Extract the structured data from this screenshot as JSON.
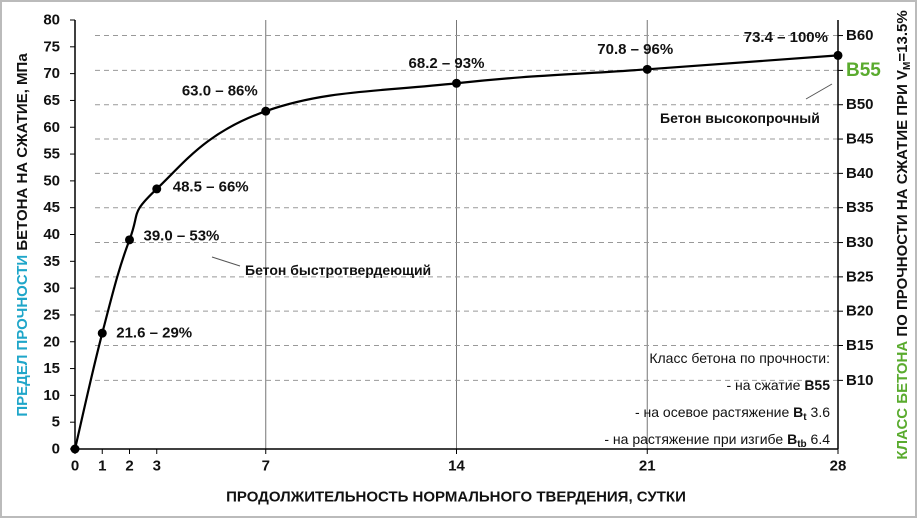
{
  "chart_data": {
    "type": "line",
    "y_title_parts": [
      "ПРЕДЕЛ ПРОЧНОСТИ",
      " БЕТОНА НА СЖАТИЕ, МПа"
    ],
    "y2_title_parts": [
      "КЛАСС БЕТОНА",
      " ПО ПРОЧНОСТИ НА СЖАТИЕ ПРИ V",
      "M",
      "=13.5%"
    ],
    "x_title": "ПРОДОЛЖИТЕЛЬНОСТЬ НОРМАЛЬНОГО ТВЕРДЕНИЯ, СУТКИ",
    "x": [
      0,
      1,
      2,
      3,
      7,
      14,
      21,
      28
    ],
    "series": [
      {
        "name": "Прочность",
        "color": "#000000",
        "values": [
          0,
          21.6,
          39.0,
          48.5,
          63.0,
          68.2,
          70.8,
          73.4
        ],
        "value_labels": [
          null,
          "21.6 – 29%",
          "39.0 – 53%",
          "48.5 – 66%",
          "63.0 – 86%",
          "68.2 – 93%",
          "70.8 – 96%",
          "73.4 – 100%"
        ]
      }
    ],
    "xlim": [
      0,
      28
    ],
    "xticks": [
      0,
      1,
      2,
      3,
      7,
      14,
      21,
      28
    ],
    "xgrid": [
      false,
      false,
      false,
      false,
      true,
      true,
      true,
      false
    ],
    "ylim": [
      0,
      80
    ],
    "yticks": [
      0,
      5,
      10,
      15,
      20,
      25,
      30,
      35,
      40,
      45,
      50,
      55,
      60,
      65,
      70,
      75,
      80
    ],
    "y2lim": [
      0,
      80
    ],
    "y2ticks": [
      {
        "value": 12.8,
        "label": "B10"
      },
      {
        "value": 19.3,
        "label": "B15"
      },
      {
        "value": 25.7,
        "label": "B20"
      },
      {
        "value": 32.1,
        "label": "B25"
      },
      {
        "value": 38.5,
        "label": "B30"
      },
      {
        "value": 45.0,
        "label": "B35"
      },
      {
        "value": 51.4,
        "label": "B40"
      },
      {
        "value": 57.8,
        "label": "B45"
      },
      {
        "value": 64.2,
        "label": "B50"
      },
      {
        "value": 70.6,
        "label": "B55"
      },
      {
        "value": 77.1,
        "label": "B60"
      }
    ],
    "y2_highlight": "B55",
    "y2_grid": "dashed",
    "annotations": [
      "Бетон быстротвердеющий",
      "Бетон высокопрочный"
    ],
    "info": {
      "heading": "Класс бетона по прочности:",
      "lines": [
        {
          "text": "- на сжатие ",
          "cls": "B55",
          "sub": "",
          "value": ""
        },
        {
          "text": "- на осевое растяжение ",
          "cls": "B",
          "sub": "t",
          "value": " 3.6"
        },
        {
          "text": "- на растяжение при изгибе ",
          "cls": "B",
          "sub": "tb",
          "value": " 6.4"
        }
      ]
    }
  }
}
